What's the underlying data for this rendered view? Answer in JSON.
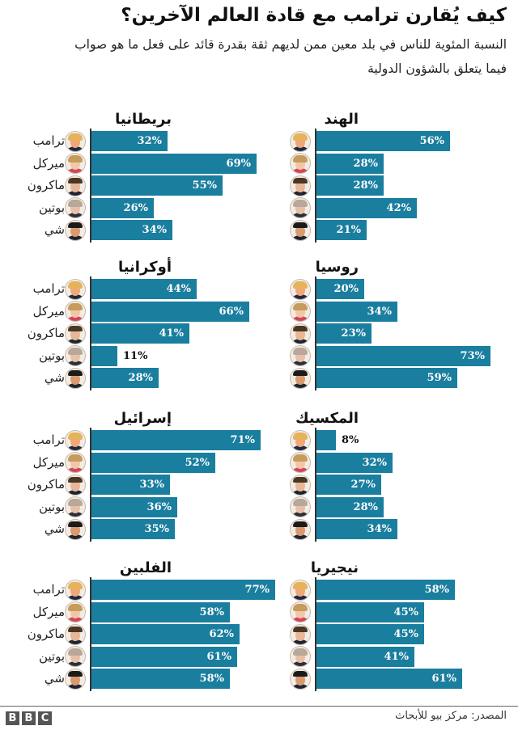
{
  "title": "كيف يُقارن ترامب مع قادة العالم الآخرين؟",
  "subtitle": "النسبة المئوية للناس في بلد معين ممن لديهم ثقة بقدرة قائد على فعل ما هو صواب فيما يتعلق بالشؤون الدولية",
  "leaders": [
    {
      "name": "ترامب",
      "icon": "trump-face-icon"
    },
    {
      "name": "ميركل",
      "icon": "merkel-face-icon"
    },
    {
      "name": "ماكرون",
      "icon": "macron-face-icon"
    },
    {
      "name": "بوتين",
      "icon": "putin-face-icon"
    },
    {
      "name": "شي",
      "icon": "xi-face-icon"
    }
  ],
  "colors": {
    "bar": "#1a7e9f",
    "bar_gap": "#d6eef5",
    "axis": "#333333",
    "value_inside": "#ffffff",
    "value_outside": "#111111",
    "bbc_block": "#555555"
  },
  "panels": [
    {
      "country": "بريطانيا",
      "values": [
        "32%",
        "69%",
        "55%",
        "26%",
        "34%"
      ]
    },
    {
      "country": "الهند",
      "values": [
        "56%",
        "28%",
        "28%",
        "42%",
        "21%"
      ]
    },
    {
      "country": "أوكرانيا",
      "values": [
        "44%",
        "66%",
        "41%",
        "11%",
        "28%"
      ]
    },
    {
      "country": "روسيا",
      "values": [
        "20%",
        "34%",
        "23%",
        "73%",
        "59%"
      ]
    },
    {
      "country": "إسرائيل",
      "values": [
        "71%",
        "52%",
        "33%",
        "36%",
        "35%"
      ]
    },
    {
      "country": "المكسيك",
      "values": [
        "8%",
        "32%",
        "27%",
        "28%",
        "34%"
      ]
    },
    {
      "country": "الفلبين",
      "values": [
        "77%",
        "58%",
        "62%",
        "61%",
        "58%"
      ]
    },
    {
      "country": "نيجيريا",
      "values": [
        "58%",
        "45%",
        "45%",
        "41%",
        "61%"
      ]
    }
  ],
  "footer": {
    "source": "المصدر: مركز بيو للأبحاث",
    "logo": [
      "B",
      "B",
      "C"
    ]
  },
  "chart_data": {
    "type": "bar",
    "orientation": "horizontal",
    "title": "كيف يُقارن ترامب مع قادة العالم الآخرين؟",
    "subtitle": "النسبة المئوية للناس في بلد معين ممن لديهم ثقة بقدرة قائد على فعل ما هو صواب فيما يتعلق بالشؤون الدولية",
    "categories": [
      "ترامب",
      "ميركل",
      "ماكرون",
      "بوتين",
      "شي"
    ],
    "unit": "%",
    "xlim": [
      0,
      100
    ],
    "grid": false,
    "legend": "none (leader portraits and names label each bar)",
    "panels": [
      {
        "title": "بريطانيا",
        "values": [
          32,
          69,
          55,
          26,
          34
        ]
      },
      {
        "title": "الهند",
        "values": [
          56,
          28,
          28,
          42,
          21
        ]
      },
      {
        "title": "أوكرانيا",
        "values": [
          44,
          66,
          41,
          11,
          28
        ]
      },
      {
        "title": "روسيا",
        "values": [
          20,
          34,
          23,
          73,
          59
        ]
      },
      {
        "title": "إسرائيل",
        "values": [
          71,
          52,
          33,
          36,
          35
        ]
      },
      {
        "title": "المكسيك",
        "values": [
          8,
          32,
          27,
          28,
          34
        ]
      },
      {
        "title": "الفلبين",
        "values": [
          77,
          58,
          62,
          61,
          58
        ]
      },
      {
        "title": "نيجيريا",
        "values": [
          58,
          45,
          45,
          41,
          61
        ]
      }
    ],
    "source": "المصدر: مركز بيو للأبحاث"
  }
}
